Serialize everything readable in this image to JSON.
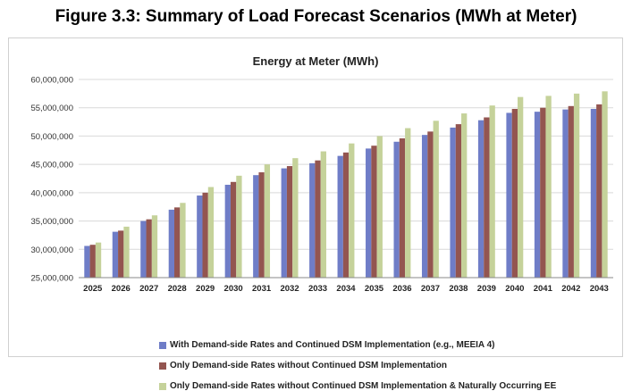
{
  "figure_title": "Figure 3.3: Summary of Load Forecast Scenarios (MWh at Meter)",
  "colors": {
    "series1": "#6f7dc7",
    "series2": "#935550",
    "series3": "#c5d29a",
    "grid": "#d9d9d9",
    "axis": "#888888"
  },
  "chart_data": {
    "type": "bar",
    "title": "Energy at Meter (MWh)",
    "xlabel": "",
    "ylabel": "",
    "ylim": [
      25000000,
      60000000
    ],
    "yticks": [
      25000000,
      30000000,
      35000000,
      40000000,
      45000000,
      50000000,
      55000000,
      60000000
    ],
    "ytick_labels": [
      "25,000,000",
      "30,000,000",
      "35,000,000",
      "40,000,000",
      "45,000,000",
      "50,000,000",
      "55,000,000",
      "60,000,000"
    ],
    "grid": true,
    "legend_position": "bottom",
    "categories": [
      "2025",
      "2026",
      "2027",
      "2028",
      "2029",
      "2030",
      "2031",
      "2032",
      "2033",
      "2034",
      "2035",
      "2036",
      "2037",
      "2038",
      "2039",
      "2040",
      "2041",
      "2042",
      "2043"
    ],
    "series": [
      {
        "name": "With Demand-side Rates and Continued DSM Implementation (e.g., MEEIA 4)",
        "values": [
          30600000,
          33100000,
          35000000,
          37000000,
          39500000,
          41400000,
          43100000,
          44300000,
          45200000,
          46500000,
          47800000,
          49000000,
          50200000,
          51500000,
          52800000,
          54100000,
          54300000,
          54700000,
          54800000
        ]
      },
      {
        "name": "Only Demand-side Rates without Continued DSM Implementation",
        "values": [
          30800000,
          33300000,
          35300000,
          37400000,
          40000000,
          41900000,
          43600000,
          44700000,
          45700000,
          47100000,
          48300000,
          49600000,
          50800000,
          52100000,
          53300000,
          54800000,
          55000000,
          55300000,
          55600000
        ]
      },
      {
        "name": "Only Demand-side Rates without Continued DSM Implementation & Naturally Occurring EE",
        "values": [
          31200000,
          34000000,
          36000000,
          38200000,
          41000000,
          43000000,
          45000000,
          46100000,
          47300000,
          48700000,
          50000000,
          51400000,
          52700000,
          54000000,
          55400000,
          56900000,
          57100000,
          57500000,
          57900000
        ]
      }
    ]
  }
}
